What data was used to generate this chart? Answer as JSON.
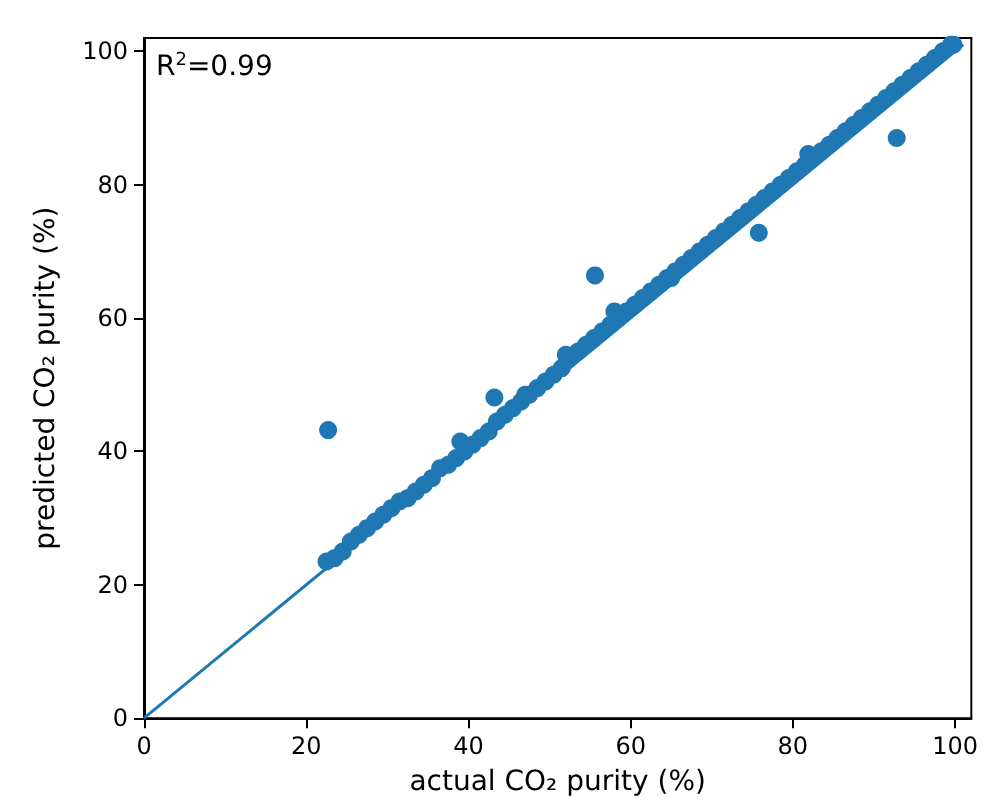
{
  "chart_data": {
    "type": "scatter",
    "xlabel": "actual CO₂ purity (%)",
    "ylabel": "predicted CO₂ purity (%)",
    "annotations": [
      "R$^{2}$=0.99"
    ],
    "xlim": [
      0,
      102
    ],
    "ylim": [
      0,
      102
    ],
    "xticks": [
      0,
      20,
      40,
      60,
      80,
      100
    ],
    "yticks": [
      0,
      20,
      40,
      60,
      80,
      100
    ],
    "grid": false,
    "series": [
      {
        "marker": "circle",
        "color": "#1f77b4",
        "x": [
          22.5,
          23.5,
          24.5,
          25.5,
          26.5,
          27.5,
          28.5,
          29.5,
          30.5,
          31.5,
          32.5,
          33.5,
          34.5,
          35.5,
          36.5,
          37.5,
          38.5,
          39.5,
          40.5,
          41.5,
          42.5,
          43.5,
          44.5,
          45.5,
          46.5,
          47.5,
          48.5,
          49.5,
          50.5,
          51.5,
          52.5,
          53.5,
          54.5,
          55.5,
          56.5,
          57.5,
          58.5,
          59.5,
          60.5,
          61.5,
          62.5,
          63.5,
          64.5,
          65.5,
          66.5,
          67.5,
          68.5,
          69.5,
          70.5,
          71.5,
          72.5,
          73.5,
          74.5,
          75.5,
          76.5,
          77.5,
          78.5,
          79.5,
          80.5,
          81.5,
          82.5,
          83.5,
          84.5,
          85.5,
          86.5,
          87.5,
          88.5,
          89.5,
          90.5,
          91.5,
          92.5,
          93.5,
          94.5,
          95.5,
          96.5,
          97.5,
          98.5,
          99.5,
          22.7,
          43.2,
          55.6,
          75.8,
          92.8,
          81.9,
          99.8,
          39,
          52,
          58,
          47,
          65
        ],
        "values": [
          23.5,
          24,
          25,
          26.5,
          27.5,
          28.5,
          29.5,
          30.5,
          31.5,
          32.5,
          33,
          34,
          35,
          36,
          37.5,
          38,
          39,
          40,
          41,
          42,
          43,
          44.5,
          45.5,
          46.5,
          47.5,
          48.5,
          49.5,
          50.5,
          51.5,
          52.5,
          54,
          55,
          56,
          57,
          58,
          59,
          60,
          61,
          62,
          63,
          64,
          65,
          66,
          67,
          68,
          69,
          70,
          71,
          72,
          73,
          74,
          75,
          76,
          77,
          78,
          79,
          80,
          81,
          82,
          83,
          84,
          85,
          86,
          87,
          88,
          89,
          90,
          91,
          92,
          93,
          94,
          95,
          96,
          97,
          98,
          99,
          100,
          101,
          43.2,
          48.1,
          66.4,
          72.8,
          87,
          84.6,
          101,
          41.5,
          54.5,
          61,
          48.5,
          66
        ]
      },
      {
        "type": "line",
        "marker": "none",
        "color": "#1f77b4",
        "x": [
          0,
          101
        ],
        "values": [
          0,
          101
        ]
      }
    ]
  }
}
